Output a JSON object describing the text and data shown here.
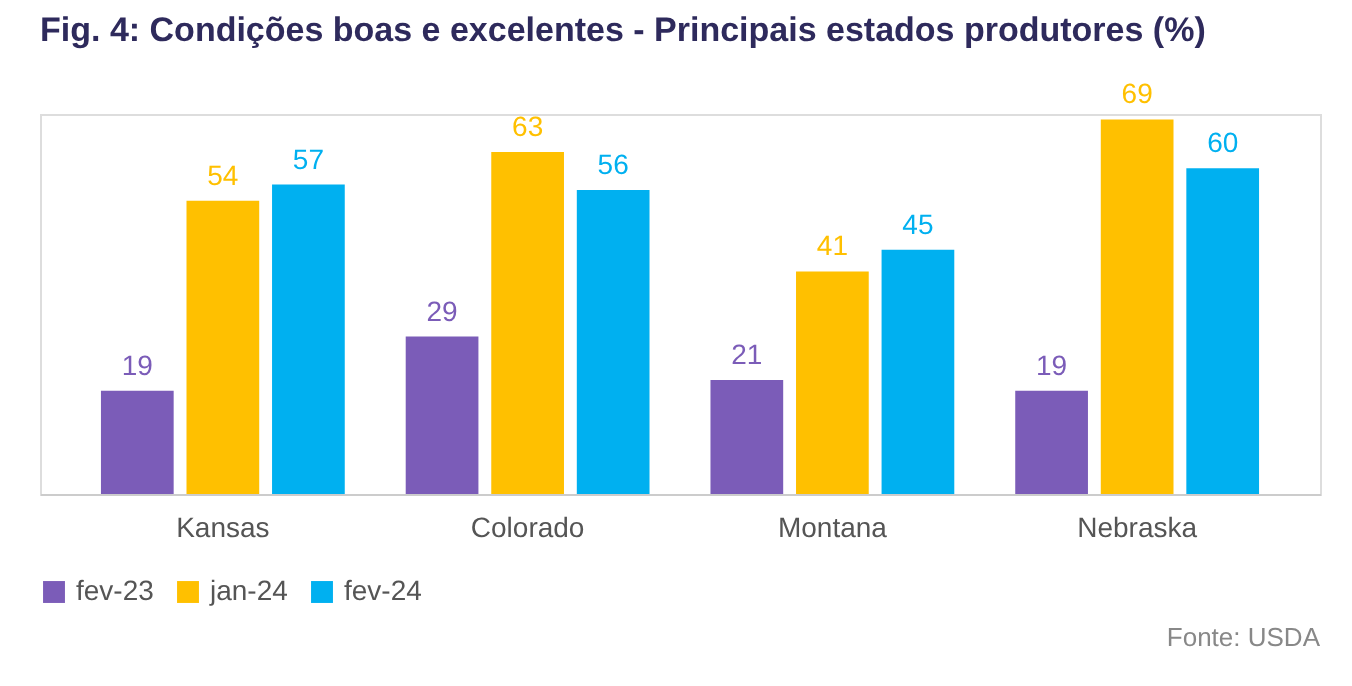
{
  "chart_data": {
    "type": "bar",
    "title": "Fig. 4: Condições boas e excelentes - Principais estados produtores (%)",
    "categories": [
      "Kansas",
      "Colorado",
      "Montana",
      "Nebraska"
    ],
    "series": [
      {
        "name": "fev-23",
        "color": "#7b5cb8",
        "values": [
          19,
          29,
          21,
          19
        ]
      },
      {
        "name": "jan-24",
        "color": "#ffc000",
        "values": [
          54,
          63,
          41,
          69
        ]
      },
      {
        "name": "fev-24",
        "color": "#00b0f0",
        "values": [
          57,
          56,
          45,
          60
        ]
      }
    ],
    "data_labels": true,
    "legend": "bottom",
    "grid": false,
    "tick_labels": "x",
    "annotations": [
      "Fonte: USDA"
    ]
  }
}
